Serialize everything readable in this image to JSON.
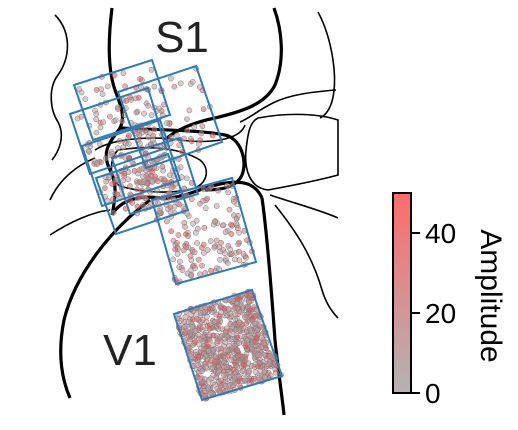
{
  "regions": [
    {
      "id": "s1",
      "label": "S1"
    },
    {
      "id": "v1",
      "label": "V1"
    }
  ],
  "colorbar": {
    "title": "Amplitude",
    "min": 0,
    "max": 50,
    "ticks": [
      {
        "value": 0,
        "label": "0"
      },
      {
        "value": 20,
        "label": "20"
      },
      {
        "value": 40,
        "label": "40"
      }
    ],
    "color_low": "#b3b3b3",
    "color_high": "#ff6b6b"
  },
  "colors": {
    "fov_outline": "#2f7bb6",
    "neuron_fill": "#c9a0a6",
    "neuron_edge": "#7a7a7a",
    "boundary": "#000000"
  }
}
